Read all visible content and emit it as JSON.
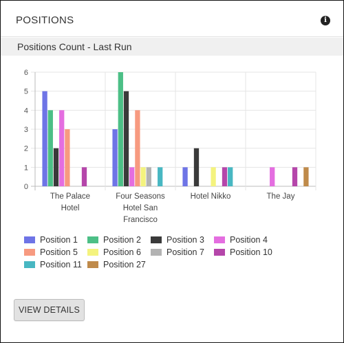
{
  "panel": {
    "title": "POSITIONS",
    "info_icon": "info-circle-icon"
  },
  "section": {
    "title": "Positions Count - Last Run"
  },
  "view_details_label": "VIEW DETAILS",
  "chart_data": {
    "type": "bar",
    "title": "",
    "xlabel": "",
    "ylabel": "",
    "ylim": [
      0,
      6
    ],
    "y_ticks": [
      0,
      1,
      2,
      3,
      4,
      5,
      6
    ],
    "grid": true,
    "legend_placement": "bottom",
    "categories": [
      [
        "The Palace",
        "Hotel"
      ],
      [
        "Four Seasons",
        "Hotel San",
        "Francisco"
      ],
      [
        "Hotel Nikko"
      ],
      [
        "The Jay"
      ]
    ],
    "series": [
      {
        "name": "Position 1",
        "color": "#6e74e6",
        "values": [
          5,
          3,
          1,
          0
        ]
      },
      {
        "name": "Position 2",
        "color": "#4cbf86",
        "values": [
          4,
          6,
          0,
          0
        ]
      },
      {
        "name": "Position 3",
        "color": "#3a3a3a",
        "values": [
          2,
          5,
          2,
          0
        ]
      },
      {
        "name": "Position 4",
        "color": "#e46ee0",
        "values": [
          4,
          1,
          0,
          1
        ]
      },
      {
        "name": "Position 5",
        "color": "#f79a80",
        "values": [
          3,
          4,
          0,
          0
        ]
      },
      {
        "name": "Position 6",
        "color": "#f4f37e",
        "values": [
          0,
          1,
          1,
          0
        ]
      },
      {
        "name": "Position 7",
        "color": "#b3b3b3",
        "values": [
          0,
          1,
          0,
          0
        ]
      },
      {
        "name": "Position 10",
        "color": "#b546aa",
        "values": [
          1,
          0,
          1,
          1
        ]
      },
      {
        "name": "Position 11",
        "color": "#48b7c2",
        "values": [
          0,
          1,
          1,
          0
        ]
      },
      {
        "name": "Position 27",
        "color": "#bf8a4a",
        "values": [
          0,
          0,
          0,
          1
        ]
      }
    ]
  }
}
